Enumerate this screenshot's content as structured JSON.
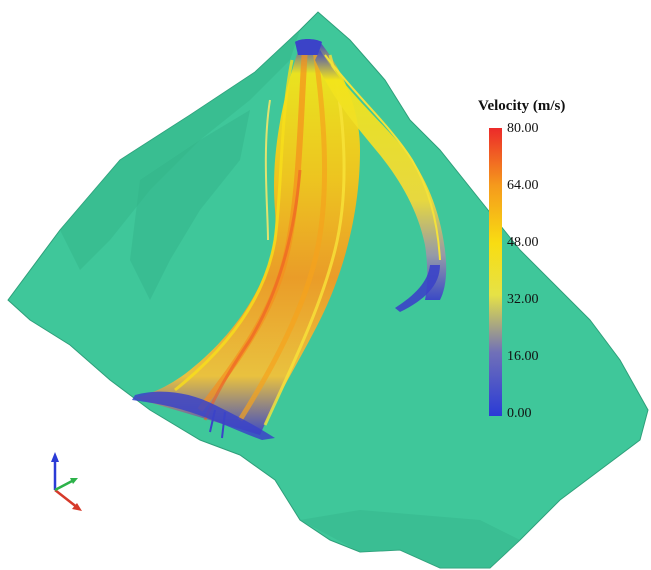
{
  "figure": {
    "terrain_color": "#3fc79a",
    "terrain_shadow_color": "#2ea27b",
    "streamline_colors_low_to_high": [
      "#2a3bd6",
      "#6f6fbf",
      "#d9d94a",
      "#f5e20a",
      "#f7a21a",
      "#ee3d22"
    ],
    "legend": {
      "title": "Velocity (m/s)",
      "ticks": [
        "80.00",
        "64.00",
        "48.00",
        "32.00",
        "16.00",
        "0.00"
      ],
      "min": 0,
      "max": 80
    },
    "axis_triad": {
      "x_color": "#d63a2a",
      "y_color": "#2db24a",
      "z_color": "#2a3bd6"
    }
  }
}
